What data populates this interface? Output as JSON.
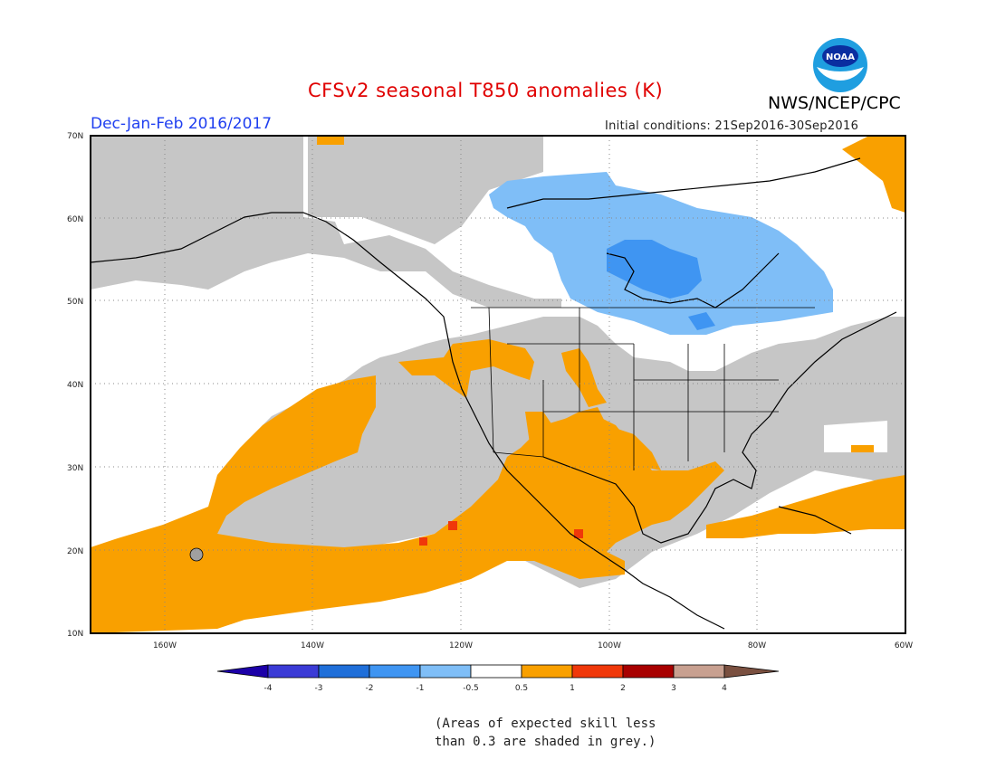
{
  "title": "CFSv2 seasonal T850 anomalies (K)",
  "agency": "NWS/NCEP/CPC",
  "logo_text": "NOAA",
  "period": "Dec-Jan-Feb 2016/2017",
  "initial_conditions": "Initial conditions: 21Sep2016-30Sep2016",
  "lat_labels": [
    "70N",
    "60N",
    "50N",
    "40N",
    "30N",
    "20N",
    "10N"
  ],
  "lon_labels": [
    "160W",
    "140W",
    "120W",
    "100W",
    "80W",
    "60W"
  ],
  "colorbar": {
    "labels": [
      "-4",
      "-3",
      "-2",
      "-1",
      "-0.5",
      "0.5",
      "1",
      "2",
      "3",
      "4"
    ],
    "colors": [
      "#1c00a8",
      "#3b3bd6",
      "#1f6fd9",
      "#3f95f2",
      "#7fbef7",
      "#ffffff",
      "#f9a000",
      "#f0380a",
      "#a80000",
      "#c8a090",
      "#7a5040"
    ]
  },
  "colors": {
    "skill_grey": "#c6c6c6",
    "light_blue": "#7fbef7",
    "mid_blue": "#3f95f2",
    "orange": "#f9a000",
    "red": "#f0380a",
    "title_red": "#e00000",
    "period_blue": "#1f3ff0"
  },
  "note": {
    "line1": "(Areas of expected skill less",
    "line2": "than 0.3 are shaded in grey.)"
  }
}
